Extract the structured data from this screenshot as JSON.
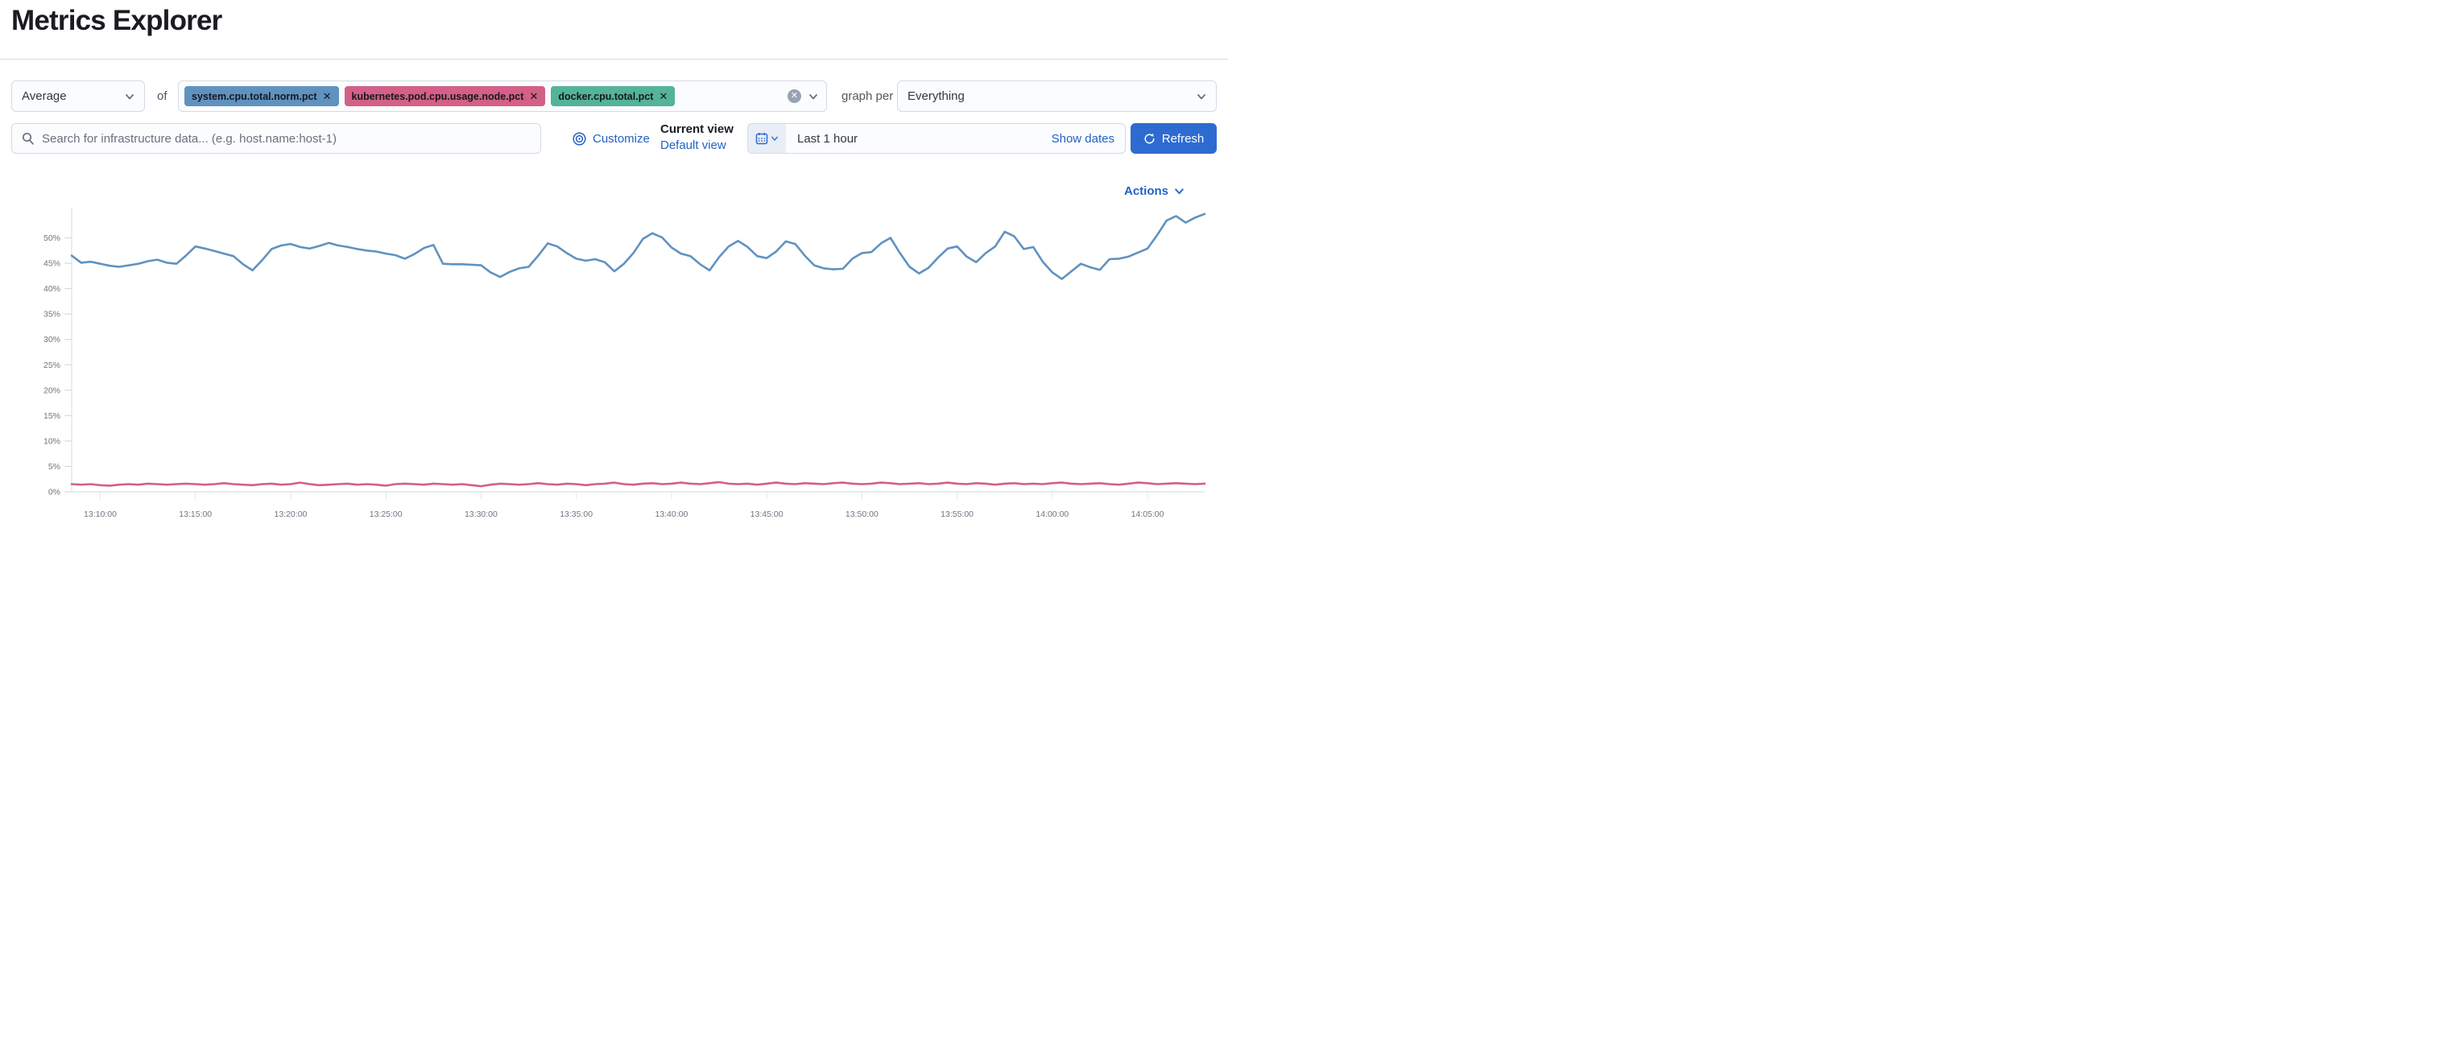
{
  "page": {
    "title": "Metrics Explorer"
  },
  "toolbar": {
    "aggregation": {
      "value": "Average"
    },
    "of_label": "of",
    "metrics": [
      {
        "label": "system.cpu.total.norm.pct",
        "color": "#6092C0"
      },
      {
        "label": "kubernetes.pod.cpu.usage.node.pct",
        "color": "#D36086"
      },
      {
        "label": "docker.cpu.total.pct",
        "color": "#54B399"
      }
    ],
    "remove_glyph": "✕",
    "clear_glyph": "✕",
    "graph_per_label": "graph per",
    "group_by": {
      "value": "Everything"
    }
  },
  "search": {
    "placeholder": "Search for infrastructure data... (e.g. host.name:host-1)"
  },
  "view_controls": {
    "customize_label": "Customize",
    "current_view_label": "Current view",
    "default_view_label": "Default view"
  },
  "time_controls": {
    "range_label": "Last 1 hour",
    "show_dates_label": "Show dates",
    "refresh_label": "Refresh"
  },
  "actions_label": "Actions",
  "colors": {
    "accent_link": "#2361c5",
    "primary_button": "#2e6bd0",
    "series_blue": "#6092C0",
    "series_pink": "#D36086",
    "badge_green": "#54B399",
    "border": "#d3dae6"
  },
  "chart_data": {
    "type": "line",
    "x_start": "13:08:30",
    "x_interval_seconds": 30,
    "x_tick_labels": [
      "13:10:00",
      "13:15:00",
      "13:20:00",
      "13:25:00",
      "13:30:00",
      "13:35:00",
      "13:40:00",
      "13:45:00",
      "13:50:00",
      "13:55:00",
      "14:00:00",
      "14:05:00"
    ],
    "x_tick_first_index": 3,
    "x_tick_index_step": 10,
    "y_tick_labels": [
      "0%",
      "5%",
      "10%",
      "15%",
      "20%",
      "25%",
      "30%",
      "35%",
      "40%",
      "45%",
      "50%"
    ],
    "y_tick_values": [
      0,
      5,
      10,
      15,
      20,
      25,
      30,
      35,
      40,
      45,
      50
    ],
    "ylabel": "",
    "xlabel": "",
    "ylim": [
      0,
      57
    ],
    "grid": false,
    "legend": "none",
    "series": [
      {
        "name": "Average system.cpu.total.norm.pct",
        "color": "#6092C0",
        "unit": "%",
        "values": [
          46.5,
          45.1,
          45.3,
          44.9,
          44.5,
          44.3,
          44.6,
          44.9,
          45.4,
          45.7,
          45.1,
          44.9,
          46.5,
          48.3,
          47.9,
          47.4,
          46.9,
          46.4,
          44.8,
          43.6,
          45.6,
          47.8,
          48.5,
          48.8,
          48.2,
          47.9,
          48.4,
          49.0,
          48.5,
          48.2,
          47.8,
          47.5,
          47.3,
          46.9,
          46.6,
          45.9,
          46.8,
          48.0,
          48.6,
          44.9,
          44.8,
          44.8,
          44.7,
          44.6,
          43.2,
          42.3,
          43.3,
          44.0,
          44.3,
          46.5,
          48.9,
          48.3,
          47.0,
          45.9,
          45.5,
          45.8,
          45.2,
          43.4,
          44.9,
          47.0,
          49.8,
          50.9,
          50.1,
          48.1,
          46.9,
          46.4,
          44.8,
          43.6,
          46.2,
          48.3,
          49.4,
          48.2,
          46.4,
          46.0,
          47.3,
          49.3,
          48.8,
          46.5,
          44.6,
          44.0,
          43.8,
          43.9,
          45.9,
          47.0,
          47.2,
          48.9,
          50.0,
          47.0,
          44.3,
          43.0,
          44.1,
          46.1,
          47.9,
          48.3,
          46.3,
          45.2,
          47.0,
          48.3,
          51.2,
          50.3,
          47.8,
          48.2,
          45.3,
          43.2,
          41.9,
          43.4,
          44.9,
          44.2,
          43.7,
          45.8,
          45.9,
          46.3,
          47.1,
          47.9,
          50.5,
          53.4,
          54.3,
          53.0,
          54.0,
          54.7
        ]
      },
      {
        "name": "Average kubernetes.pod.cpu.usage.node.pct",
        "color": "#D36086",
        "unit": "%",
        "values": [
          1.5,
          1.4,
          1.5,
          1.3,
          1.2,
          1.4,
          1.5,
          1.4,
          1.6,
          1.5,
          1.4,
          1.5,
          1.6,
          1.5,
          1.4,
          1.5,
          1.7,
          1.5,
          1.4,
          1.3,
          1.5,
          1.6,
          1.4,
          1.5,
          1.8,
          1.5,
          1.3,
          1.4,
          1.5,
          1.6,
          1.4,
          1.5,
          1.4,
          1.2,
          1.5,
          1.6,
          1.5,
          1.4,
          1.6,
          1.5,
          1.4,
          1.5,
          1.3,
          1.1,
          1.4,
          1.6,
          1.5,
          1.4,
          1.5,
          1.7,
          1.5,
          1.4,
          1.6,
          1.5,
          1.3,
          1.5,
          1.6,
          1.8,
          1.5,
          1.4,
          1.6,
          1.7,
          1.5,
          1.6,
          1.8,
          1.6,
          1.5,
          1.7,
          1.9,
          1.6,
          1.5,
          1.6,
          1.4,
          1.6,
          1.8,
          1.6,
          1.5,
          1.7,
          1.6,
          1.5,
          1.7,
          1.8,
          1.6,
          1.5,
          1.6,
          1.8,
          1.7,
          1.5,
          1.6,
          1.7,
          1.5,
          1.6,
          1.8,
          1.6,
          1.5,
          1.7,
          1.6,
          1.4,
          1.6,
          1.7,
          1.5,
          1.6,
          1.5,
          1.7,
          1.8,
          1.6,
          1.5,
          1.6,
          1.7,
          1.5,
          1.4,
          1.6,
          1.8,
          1.7,
          1.5,
          1.6,
          1.7,
          1.6,
          1.5,
          1.6
        ]
      }
    ]
  }
}
